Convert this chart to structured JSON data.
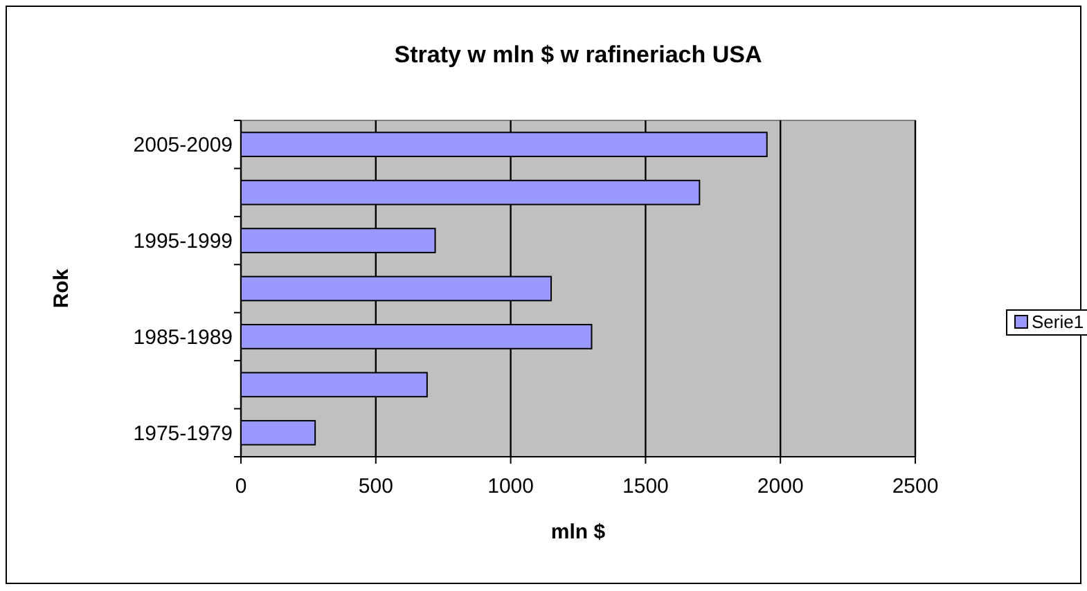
{
  "chart_data": {
    "type": "bar",
    "orientation": "horizontal",
    "title": "Straty w mln $ w rafineriach USA",
    "xlabel": "mln $",
    "ylabel": "Rok",
    "categories": [
      "2005-2009",
      null,
      "1995-1999",
      null,
      "1985-1989",
      null,
      "1975-1979"
    ],
    "series": [
      {
        "name": "Serie1",
        "color": "#9999ff",
        "values": [
          1950,
          1700,
          720,
          1150,
          1300,
          690,
          275
        ]
      }
    ],
    "xlim": [
      0,
      2500
    ],
    "xticks": [
      0,
      500,
      1000,
      1500,
      2000,
      2500
    ],
    "grid": "x",
    "legend": "right"
  }
}
